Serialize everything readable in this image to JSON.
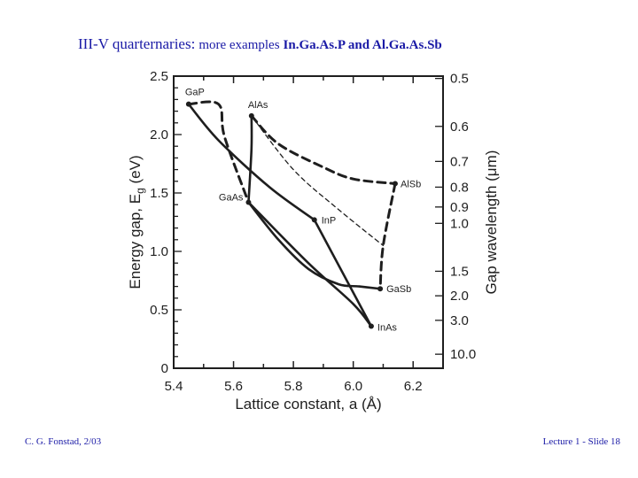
{
  "title": {
    "part1": "III-V quarternaries:",
    "part2": "more examples",
    "part3": "In.Ga.As.P and Al.Ga.As.Sb"
  },
  "footer": {
    "left": "C. G. Fonstad, 2/03",
    "right": "Lecture 1 - Slide 18"
  },
  "figure": {
    "xlabel": "Lattice constant, a (Å)",
    "ylabel_left": "Energy gap, E",
    "ylabel_left_sub": "g",
    "ylabel_left_unit": " (eV)",
    "ylabel_right": "Gap wavelength (μm)",
    "xlim": [
      5.4,
      6.3
    ],
    "ylim": [
      0,
      2.5
    ],
    "xticks": [
      "5.4",
      "5.6",
      "5.8",
      "6.0",
      "6.2"
    ],
    "yticks_left": [
      "0",
      "0.5",
      "1.0",
      "1.5",
      "2.0",
      "2.5"
    ],
    "yticks_right": [
      {
        "label": "0.5",
        "energy": 2.48
      },
      {
        "label": "0.6",
        "energy": 2.07
      },
      {
        "label": "0.7",
        "energy": 1.77
      },
      {
        "label": "0.8",
        "energy": 1.55
      },
      {
        "label": "0.9",
        "energy": 1.38
      },
      {
        "label": "1.0",
        "energy": 1.24
      },
      {
        "label": "1.5",
        "energy": 0.83
      },
      {
        "label": "2.0",
        "energy": 0.62
      },
      {
        "label": "3.0",
        "energy": 0.41
      },
      {
        "label": "10.0",
        "energy": 0.12
      }
    ],
    "materials": [
      {
        "name": "GaP",
        "a": 5.45,
        "eg": 2.26
      },
      {
        "name": "AlAs",
        "a": 5.66,
        "eg": 2.16
      },
      {
        "name": "GaAs",
        "a": 5.65,
        "eg": 1.42
      },
      {
        "name": "InP",
        "a": 5.87,
        "eg": 1.27
      },
      {
        "name": "AlSb",
        "a": 6.14,
        "eg": 1.58
      },
      {
        "name": "GaSb",
        "a": 6.09,
        "eg": 0.68
      },
      {
        "name": "InAs",
        "a": 6.06,
        "eg": 0.36
      }
    ],
    "curves": [
      {
        "style": "dashed",
        "points": [
          [
            5.45,
            2.26
          ],
          [
            5.55,
            2.26
          ],
          [
            5.57,
            1.98
          ],
          [
            5.65,
            1.42
          ]
        ]
      },
      {
        "style": "dashed",
        "points": [
          [
            5.66,
            2.16
          ],
          [
            5.75,
            1.92
          ],
          [
            5.9,
            1.72
          ],
          [
            6.0,
            1.62
          ],
          [
            6.14,
            1.58
          ]
        ]
      },
      {
        "style": "dashed",
        "points": [
          [
            6.14,
            1.58
          ],
          [
            6.1,
            1.05
          ],
          [
            6.09,
            0.68
          ]
        ]
      },
      {
        "style": "thin-dashed",
        "points": [
          [
            5.66,
            2.16
          ],
          [
            5.8,
            1.7
          ],
          [
            5.95,
            1.36
          ],
          [
            6.1,
            1.05
          ]
        ]
      },
      {
        "style": "solid",
        "points": [
          [
            5.45,
            2.26
          ],
          [
            5.55,
            1.95
          ],
          [
            5.72,
            1.55
          ],
          [
            5.87,
            1.27
          ]
        ]
      },
      {
        "style": "solid",
        "points": [
          [
            5.87,
            1.27
          ],
          [
            6.06,
            0.36
          ]
        ]
      },
      {
        "style": "solid",
        "points": [
          [
            5.65,
            1.42
          ],
          [
            5.66,
            1.88
          ],
          [
            5.66,
            2.16
          ]
        ]
      },
      {
        "style": "solid",
        "points": [
          [
            5.65,
            1.42
          ],
          [
            5.85,
            0.9
          ],
          [
            6.0,
            0.55
          ],
          [
            6.06,
            0.36
          ]
        ]
      },
      {
        "style": "solid",
        "points": [
          [
            5.65,
            1.42
          ],
          [
            5.75,
            1.1
          ],
          [
            5.85,
            0.85
          ],
          [
            5.95,
            0.72
          ],
          [
            6.02,
            0.7
          ],
          [
            6.09,
            0.68
          ]
        ]
      }
    ]
  }
}
